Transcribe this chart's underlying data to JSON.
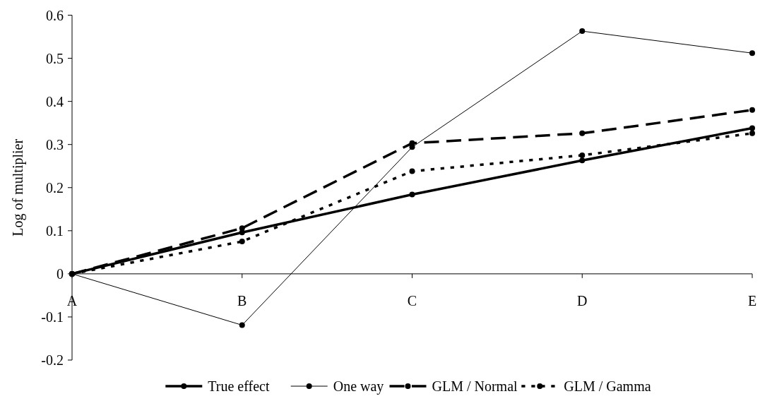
{
  "chart_data": {
    "type": "line",
    "ylabel": "Log of multiplier",
    "categories": [
      "A",
      "B",
      "C",
      "D",
      "E"
    ],
    "series": [
      {
        "name": "True effect",
        "color": "#000000",
        "line_style": "solid",
        "values": [
          0,
          0.096,
          0.184,
          0.263,
          0.338
        ]
      },
      {
        "name": "One way",
        "color": "#000000",
        "line_style": "solid",
        "values": [
          0,
          -0.119,
          0.294,
          0.563,
          0.512
        ]
      },
      {
        "name": "GLM / Normal",
        "color": "#000000",
        "line_style": "dashed",
        "values": [
          0,
          0.106,
          0.303,
          0.326,
          0.38
        ]
      },
      {
        "name": "GLM / Gamma",
        "color": "#000000",
        "line_style": "dotted",
        "values": [
          0,
          0.075,
          0.238,
          0.275,
          0.326
        ]
      }
    ],
    "ylim": [
      -0.2,
      0.6
    ],
    "yticks": [
      -0.2,
      -0.1,
      0,
      0.1,
      0.2,
      0.3,
      0.4,
      0.5,
      0.6
    ],
    "marker": "circle",
    "legend": "bottom"
  }
}
